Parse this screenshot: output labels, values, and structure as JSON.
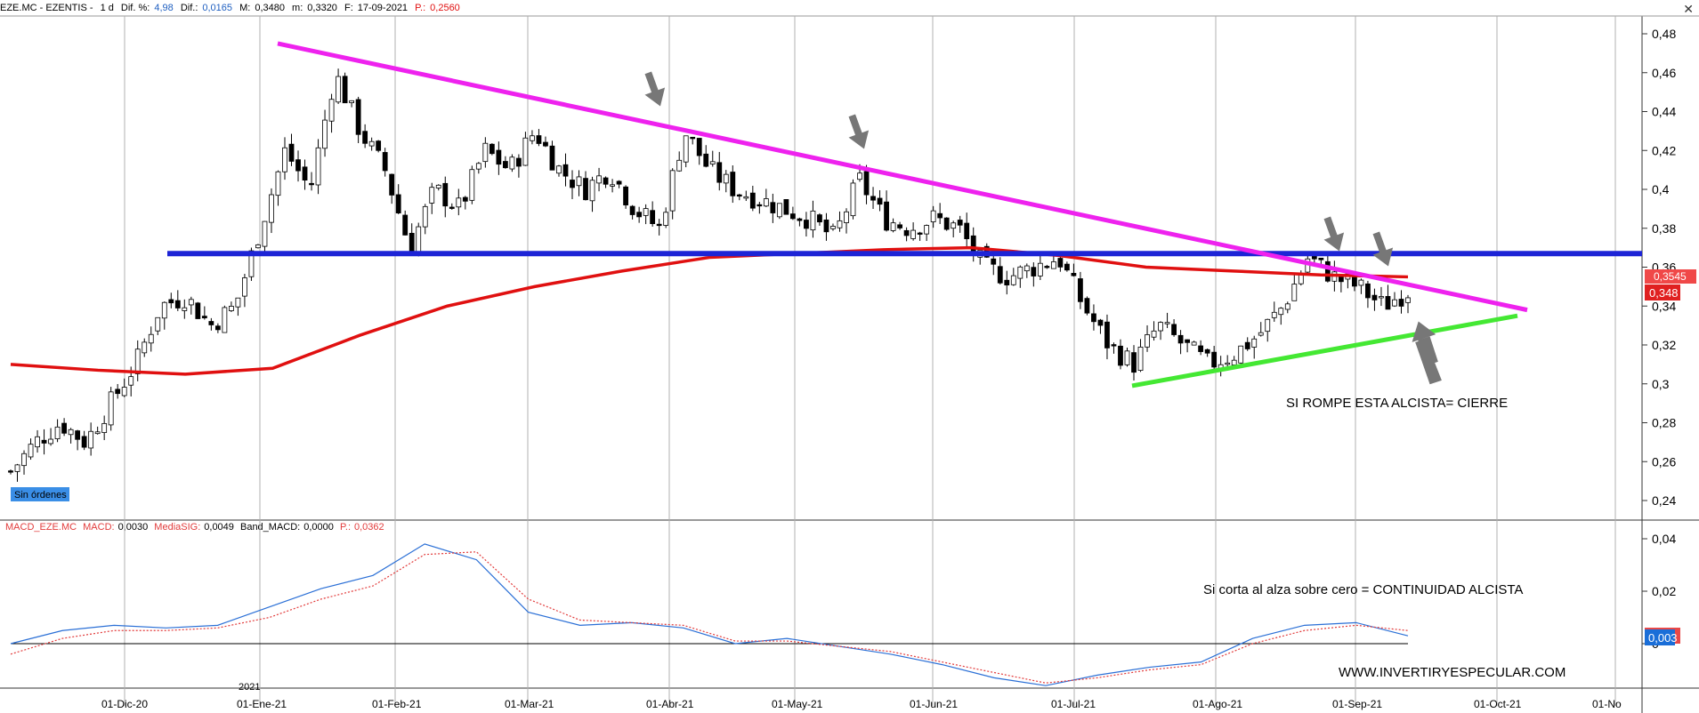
{
  "header": {
    "symbol": "EZE.MC - EZENTIS -",
    "period": "1 d",
    "dif_pct_label": "Dif. %:",
    "dif_pct_value": "4,98",
    "dif_label": "Dif.:",
    "dif_value": "0,0165",
    "max_label": "M:",
    "max_value": "0,3480",
    "min_label": "m:",
    "min_value": "0,3320",
    "date_label": "F:",
    "date_value": "17-09-2021",
    "p_label": "P.:",
    "p_value": "0,2560",
    "close_btn": "✕"
  },
  "badge": "Sin órdenes",
  "price_tags": {
    "ma": "0,3545",
    "price": "0,348",
    "macd": "0,003"
  },
  "macd_header": {
    "name": "MACD_EZE.MC",
    "macd_label": "MACD:",
    "macd_value": "0,0030",
    "sig_label": "MediaSIG:",
    "sig_value": "0,0049",
    "band_label": "Band_MACD:",
    "band_value": "0,0000",
    "p_label": "P.:",
    "p_value": "0,0362"
  },
  "annotations": {
    "support_note": "SI ROMPE ESTA ALCISTA= CIERRE",
    "macd_note": "Si corta al alza sobre cero = CONTINUIDAD ALCISTA",
    "website": "WWW.INVERTIRYESPECULAR.COM",
    "year_marker": "2021"
  },
  "chart_data": [
    {
      "type": "candlestick",
      "title": "EZE.MC - EZENTIS",
      "y_axis_ticks": [
        "0,48",
        "0,46",
        "0,44",
        "0,42",
        "0,4",
        "0,38",
        "0,36",
        "0,34",
        "0,32",
        "0,3",
        "0,28",
        "0,26",
        "0,24"
      ],
      "ylim": [
        0.23,
        0.49
      ],
      "x_axis_ticks": [
        "01-Dic-20",
        "01-Ene-21",
        "01-Feb-21",
        "01-Mar-21",
        "01-Abr-21",
        "01-May-21",
        "01-Jun-21",
        "01-Jul-21",
        "01-Ago-21",
        "01-Sep-21",
        "01-Oct-21",
        "01-No"
      ],
      "close_path": [
        [
          0.255,
          "Nov-20"
        ],
        [
          0.27,
          "Nov-20"
        ],
        [
          0.28,
          "Nov-20"
        ],
        [
          0.27,
          "Dic-20"
        ],
        [
          0.29,
          "Dic-20"
        ],
        [
          0.31,
          "Dic-20"
        ],
        [
          0.34,
          "Dic-20"
        ],
        [
          0.345,
          "Dic-20"
        ],
        [
          0.33,
          "Dic-20"
        ],
        [
          0.34,
          "Dic-20"
        ],
        [
          0.38,
          "Ene-21"
        ],
        [
          0.42,
          "Ene-21"
        ],
        [
          0.4,
          "Ene-21"
        ],
        [
          0.46,
          "Ene-21"
        ],
        [
          0.43,
          "Ene-21"
        ],
        [
          0.41,
          "Ene-21"
        ],
        [
          0.37,
          "Feb-21"
        ],
        [
          0.4,
          "Feb-21"
        ],
        [
          0.39,
          "Feb-21"
        ],
        [
          0.42,
          "Feb-21"
        ],
        [
          0.41,
          "Mar-21"
        ],
        [
          0.43,
          "Mar-21"
        ],
        [
          0.41,
          "Mar-21"
        ],
        [
          0.4,
          "Mar-21"
        ],
        [
          0.41,
          "Mar-21"
        ],
        [
          0.39,
          "Mar-21"
        ],
        [
          0.38,
          "Mar-21"
        ],
        [
          0.43,
          "Abr-21"
        ],
        [
          0.41,
          "Abr-21"
        ],
        [
          0.4,
          "Abr-21"
        ],
        [
          0.395,
          "Abr-21"
        ],
        [
          0.39,
          "May-21"
        ],
        [
          0.385,
          "May-21"
        ],
        [
          0.375,
          "May-21"
        ],
        [
          0.405,
          "May-21"
        ],
        [
          0.385,
          "May-21"
        ],
        [
          0.38,
          "Jun-21"
        ],
        [
          0.385,
          "Jun-21"
        ],
        [
          0.38,
          "Jun-21"
        ],
        [
          0.36,
          "Jun-21"
        ],
        [
          0.355,
          "Jun-21"
        ],
        [
          0.36,
          "Jul-21"
        ],
        [
          0.365,
          "Jul-21"
        ],
        [
          0.34,
          "Jul-21"
        ],
        [
          0.32,
          "Jul-21"
        ],
        [
          0.31,
          "Jul-21"
        ],
        [
          0.33,
          "Jul-21"
        ],
        [
          0.32,
          "Ago-21"
        ],
        [
          0.31,
          "Ago-21"
        ],
        [
          0.315,
          "Ago-21"
        ],
        [
          0.325,
          "Ago-21"
        ],
        [
          0.34,
          "Ago-21"
        ],
        [
          0.365,
          "Sep-21"
        ],
        [
          0.355,
          "Sep-21"
        ],
        [
          0.35,
          "Sep-21"
        ],
        [
          0.34,
          "Sep-21"
        ],
        [
          0.348,
          "Sep-21"
        ]
      ],
      "overlays": [
        {
          "name": "moving_average",
          "color": "#e01010",
          "points_y": [
            0.31,
            0.307,
            0.305,
            0.308,
            0.325,
            0.34,
            0.35,
            0.358,
            0.365,
            0.367,
            0.369,
            0.37,
            0.366,
            0.36,
            0.358,
            0.356,
            0.355
          ]
        },
        {
          "name": "resistance",
          "color": "#1d24d6",
          "value": 0.367
        },
        {
          "name": "downtrend",
          "color": "#ee22ee",
          "from": 0.475,
          "to": 0.338
        },
        {
          "name": "uptrend",
          "color": "#44e833",
          "from": 0.299,
          "to": 0.335
        }
      ],
      "last_price": 0.348,
      "ma_value": 0.3545
    },
    {
      "type": "line",
      "title": "MACD_EZE.MC",
      "y_axis_ticks": [
        "0,04",
        "0,02",
        "0"
      ],
      "ylim": [
        -0.025,
        0.045
      ],
      "series": [
        {
          "name": "MACD",
          "color": "#2a6fd6",
          "values": [
            0.0,
            0.005,
            0.007,
            0.006,
            0.007,
            0.014,
            0.021,
            0.026,
            0.038,
            0.032,
            0.012,
            0.007,
            0.008,
            0.006,
            0.0,
            0.002,
            -0.001,
            -0.004,
            -0.008,
            -0.013,
            -0.016,
            -0.012,
            -0.009,
            -0.007,
            0.002,
            0.007,
            0.008,
            0.003
          ]
        },
        {
          "name": "MediaSIG",
          "color": "#e23b3b",
          "values": [
            -0.004,
            0.002,
            0.005,
            0.005,
            0.006,
            0.01,
            0.017,
            0.022,
            0.034,
            0.035,
            0.017,
            0.009,
            0.008,
            0.007,
            0.001,
            0.001,
            -0.001,
            -0.003,
            -0.007,
            -0.011,
            -0.015,
            -0.013,
            -0.01,
            -0.008,
            0.0,
            0.005,
            0.007,
            0.005
          ]
        }
      ],
      "macd_value": 0.003
    }
  ]
}
